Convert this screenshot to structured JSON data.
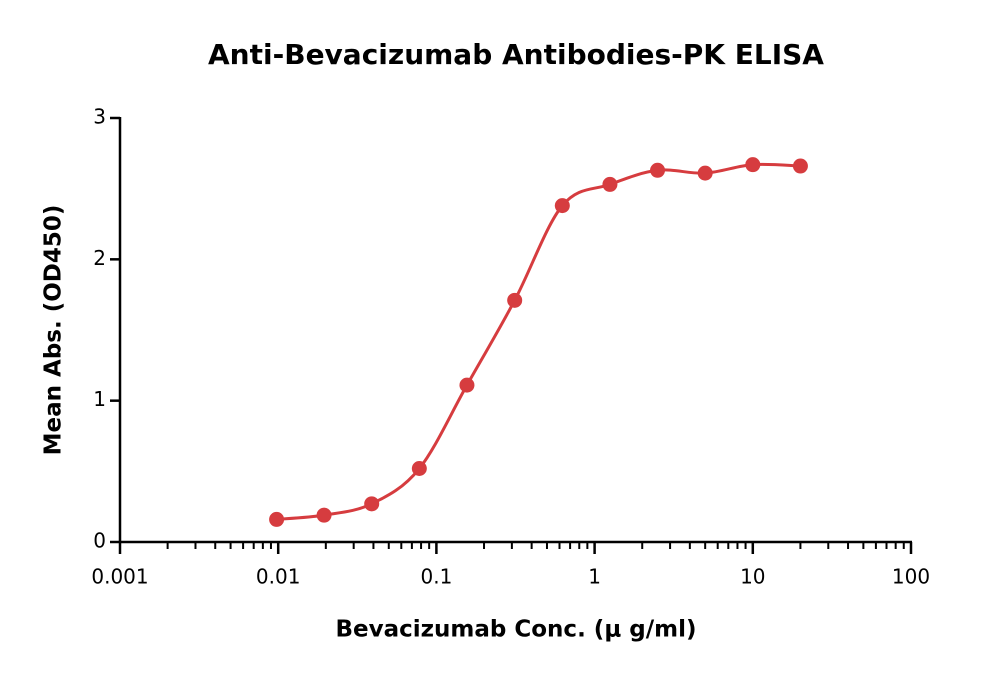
{
  "chart_data": {
    "type": "scatter",
    "title": "Anti-Bevacizumab Antibodies-PK ELISA",
    "x_label": "Bevacizumab Conc. (μ g/ml)",
    "y_label": "Mean Abs. (OD450)",
    "x": [
      0.00977,
      0.0195,
      0.039,
      0.078,
      0.156,
      0.3125,
      0.625,
      1.25,
      2.5,
      5,
      10,
      20
    ],
    "values": [
      0.16,
      0.19,
      0.27,
      0.52,
      1.11,
      1.71,
      2.38,
      2.53,
      2.63,
      2.61,
      2.67,
      2.66
    ],
    "color": "#d63c3f",
    "x_log": true,
    "smooth_line": true,
    "xlim": [
      0.001,
      100
    ],
    "xticks": [
      0.001,
      0.01,
      0.1,
      1,
      10,
      100
    ],
    "ylim": [
      0,
      3
    ],
    "yticks": [
      0,
      1,
      2,
      3
    ]
  }
}
